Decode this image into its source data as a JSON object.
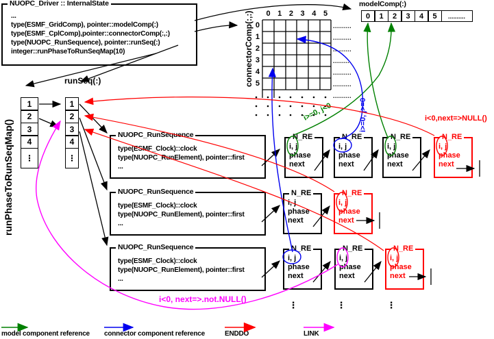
{
  "colors": {
    "green": "#008000",
    "blue": "#0000ee",
    "red": "#ff0000",
    "magenta": "#ff00ff",
    "black": "#000000"
  },
  "driver_box": {
    "title": "NUOPC_Driver :: InternalState",
    "lines": [
      "...",
      "type(ESMF_GridComp), pointer::modelComp(:)",
      "type(ESMF_CplComp),pointer::connectorComp(:,:)",
      "type(NUOPC_RunSequence), pointer::runSeq(:)",
      "integer::runPhaseToRunSeqMap(10)"
    ]
  },
  "model_comp": {
    "label": "modelComp(:)",
    "cells": [
      "0",
      "1",
      "2",
      "3",
      "4",
      "5",
      ".........."
    ]
  },
  "connector_grid": {
    "label": "connectorComp(:,:)",
    "col_headers": [
      "0",
      "1",
      "2",
      "3",
      "4",
      "5"
    ],
    "row_headers": [
      "0",
      "1",
      "2",
      "3",
      "4",
      "5"
    ],
    "row_dashes": ".........",
    "rows": 6,
    "cols": 6
  },
  "run_phase_map": {
    "label": "runPhaseToRunSeqMap()",
    "cells": [
      "1",
      "2",
      "3",
      "4",
      "⋮"
    ]
  },
  "run_seq": {
    "label": "runSeq(:)",
    "cells": [
      "1",
      "2",
      "3",
      "4",
      "⋮"
    ]
  },
  "run_sequence_boxes": [
    {
      "title": "NUOPC_RunSequence",
      "lines": [
        "type(ESMF_Clock)::clock",
        "type(NUOPC_RunElement), pointer::first",
        "..."
      ]
    },
    {
      "title": "NUOPC_RunSequence",
      "lines": [
        "type(ESMF_Clock)::clock",
        "type(NUOPC_RunElement), pointer::first",
        "..."
      ]
    },
    {
      "title": "NUOPC_RunSequence",
      "lines": [
        "type(ESMF_Clock)::clock",
        "type(NUOPC_RunElement), pointer::first",
        "..."
      ]
    }
  ],
  "nre": {
    "title": "N_RE",
    "fields": [
      "i, j",
      "phase",
      "next"
    ],
    "rows": [
      {
        "boxes": [
          {
            "ellipse": "green",
            "enddo": false
          },
          {
            "ellipse": "blue",
            "enddo": false
          },
          {
            "ellipse": "green",
            "enddo": false
          },
          {
            "ellipse": "red",
            "enddo": true
          }
        ]
      },
      {
        "boxes": [
          {
            "ellipse": "none",
            "enddo": false
          },
          {
            "ellipse": "red",
            "enddo": true
          }
        ]
      },
      {
        "boxes": [
          {
            "ellipse": "blue",
            "enddo": false
          },
          {
            "ellipse": "magenta",
            "enddo": false
          },
          {
            "ellipse": "red",
            "enddo": true
          }
        ]
      }
    ]
  },
  "annotations": {
    "red_label": "i<0,next=>NULL()",
    "magenta_label": "i<0, next=>.not.NULL()",
    "green_label": "i>=0, j<0",
    "blue_label": "i>=0, j>=0"
  },
  "legend": [
    {
      "label": "model component reference",
      "color": "#008000"
    },
    {
      "label": "connector component reference",
      "color": "#0000ee"
    },
    {
      "label": "ENDDO",
      "color": "#ff0000"
    },
    {
      "label": "LINK",
      "color": "#ff00ff"
    }
  ],
  "ellipsis": "⋮"
}
